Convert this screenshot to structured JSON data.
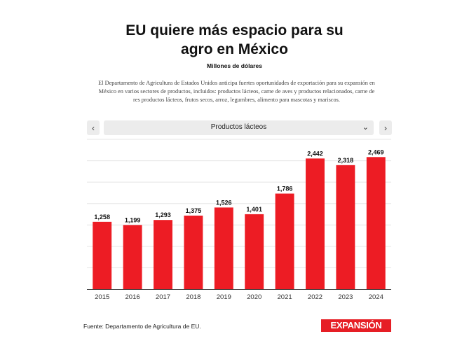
{
  "header": {
    "title_line1": "EU quiere más espacio para su",
    "title_line2": "agro en México",
    "subtitle": "Millones de dólares",
    "description": "El Departamento de Agricultura de Estados Unidos anticipa fuertes oportunidades de exportación para su expansión en México en varios sectores de productos, incluidos: productos lácteos, carne de aves y productos relacionados, carne de res productos lácteos, frutos secos, arroz, legumbres, alimento para mascotas y mariscos."
  },
  "controls": {
    "prev_label": "‹",
    "next_label": "›",
    "dropdown_value": "Productos lácteos",
    "dropdown_chevron": "⌄"
  },
  "footer": {
    "source": "Fuente: Departamento de Agricultura de EU.",
    "logo_text": "EXPANSIÓN"
  },
  "colors": {
    "bar": "#ed1c24",
    "grid": "#e5e5e5",
    "baseline": "#444444"
  },
  "chart_data": {
    "type": "bar",
    "title": "EU quiere más espacio para su agro en México",
    "ylabel": "Millones de dólares",
    "xlabel": "",
    "categories": [
      "2015",
      "2016",
      "2017",
      "2018",
      "2019",
      "2020",
      "2021",
      "2022",
      "2023",
      "2024"
    ],
    "values": [
      1258,
      1199,
      1293,
      1375,
      1526,
      1401,
      1786,
      2442,
      2318,
      2469
    ],
    "value_labels": [
      "1,258",
      "1,199",
      "1,293",
      "1,375",
      "1,526",
      "1,401",
      "1,786",
      "2,442",
      "2,318",
      "2,469"
    ],
    "ylim": [
      0,
      2800
    ],
    "grid_step": 400,
    "grid": true
  }
}
